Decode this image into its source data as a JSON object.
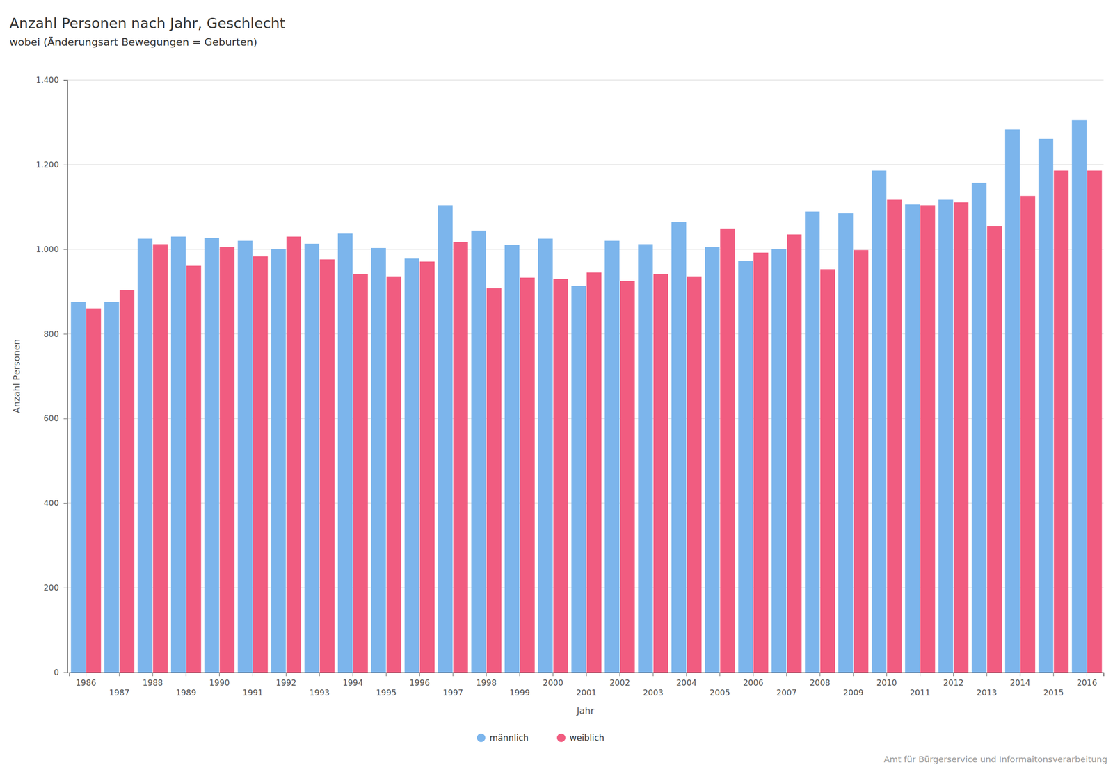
{
  "chart_data": {
    "type": "bar",
    "title": "Anzahl Personen nach Jahr, Geschlecht",
    "subtitle": "wobei (Änderungsart Bewegungen = Geburten)",
    "x_label": "Jahr",
    "y_label": "Anzahl Personen",
    "source": "Amt für Bürgerservice und Informaitonsverarbeitung",
    "categories": [
      "1986",
      "1987",
      "1988",
      "1989",
      "1990",
      "1991",
      "1992",
      "1993",
      "1994",
      "1995",
      "1996",
      "1997",
      "1998",
      "1999",
      "2000",
      "2001",
      "2002",
      "2003",
      "2004",
      "2005",
      "2006",
      "2007",
      "2008",
      "2009",
      "2010",
      "2011",
      "2012",
      "2013",
      "2014",
      "2015",
      "2016"
    ],
    "series": [
      {
        "name": "männlich",
        "color": "#7cb5ec",
        "values": [
          876,
          876,
          1025,
          1030,
          1027,
          1020,
          1000,
          1013,
          1037,
          1003,
          978,
          1104,
          1044,
          1010,
          1025,
          913,
          1020,
          1012,
          1064,
          1005,
          972,
          1000,
          1089,
          1085,
          1186,
          1106,
          1117,
          1157,
          1283,
          1261,
          1305
        ]
      },
      {
        "name": "weiblich",
        "color": "#f15c80",
        "values": [
          859,
          903,
          1012,
          961,
          1005,
          983,
          1030,
          976,
          941,
          936,
          971,
          1017,
          908,
          933,
          930,
          945,
          925,
          941,
          936,
          1049,
          992,
          1035,
          953,
          998,
          1117,
          1104,
          1111,
          1054,
          1126,
          1186,
          1186
        ]
      }
    ],
    "ylim": [
      0,
      1400
    ],
    "yticks": [
      0,
      200,
      400,
      600,
      800,
      {
        "value": 1000,
        "label": "1.000"
      },
      {
        "value": 1200,
        "label": "1.200"
      },
      {
        "value": 1400,
        "label": "1.400"
      }
    ],
    "grid": true,
    "legend": "bottom"
  }
}
